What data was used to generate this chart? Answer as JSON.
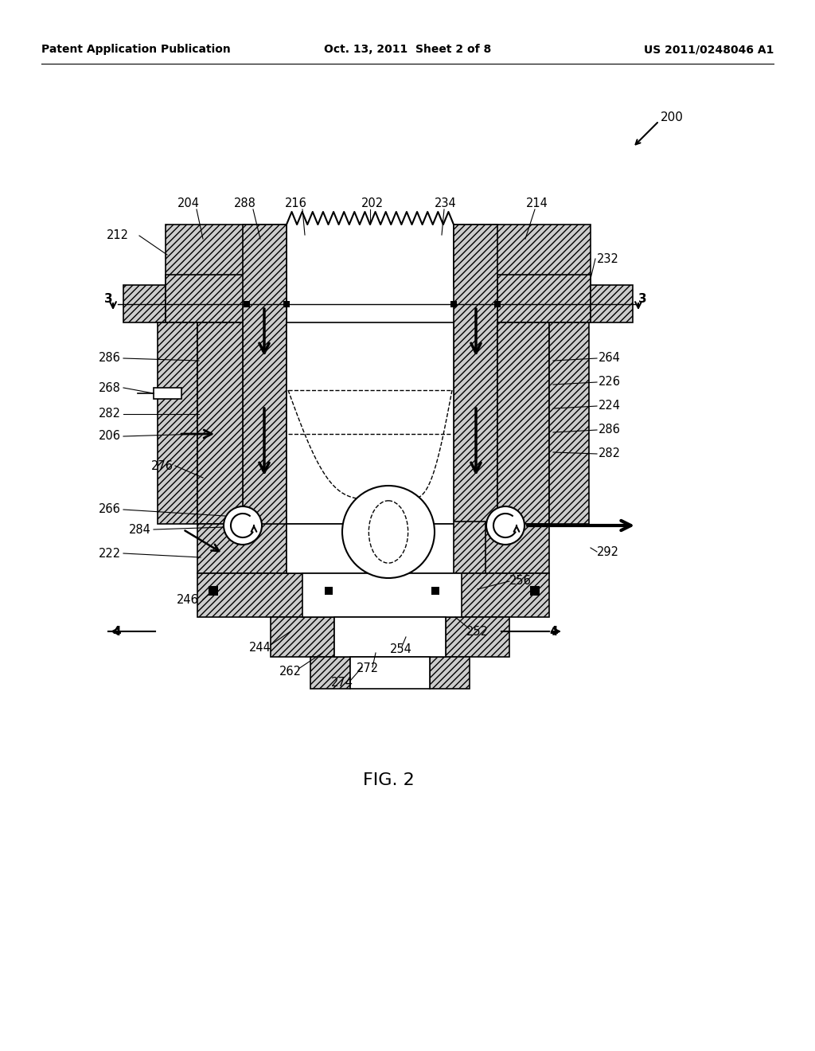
{
  "bg_color": "#ffffff",
  "header_left": "Patent Application Publication",
  "header_center": "Oct. 13, 2011  Sheet 2 of 8",
  "header_right": "US 2011/0248046 A1",
  "fig_label": "FIG. 2",
  "hatch_pattern": "////",
  "hatch_color": "#aaaaaa",
  "line_color": "#000000"
}
